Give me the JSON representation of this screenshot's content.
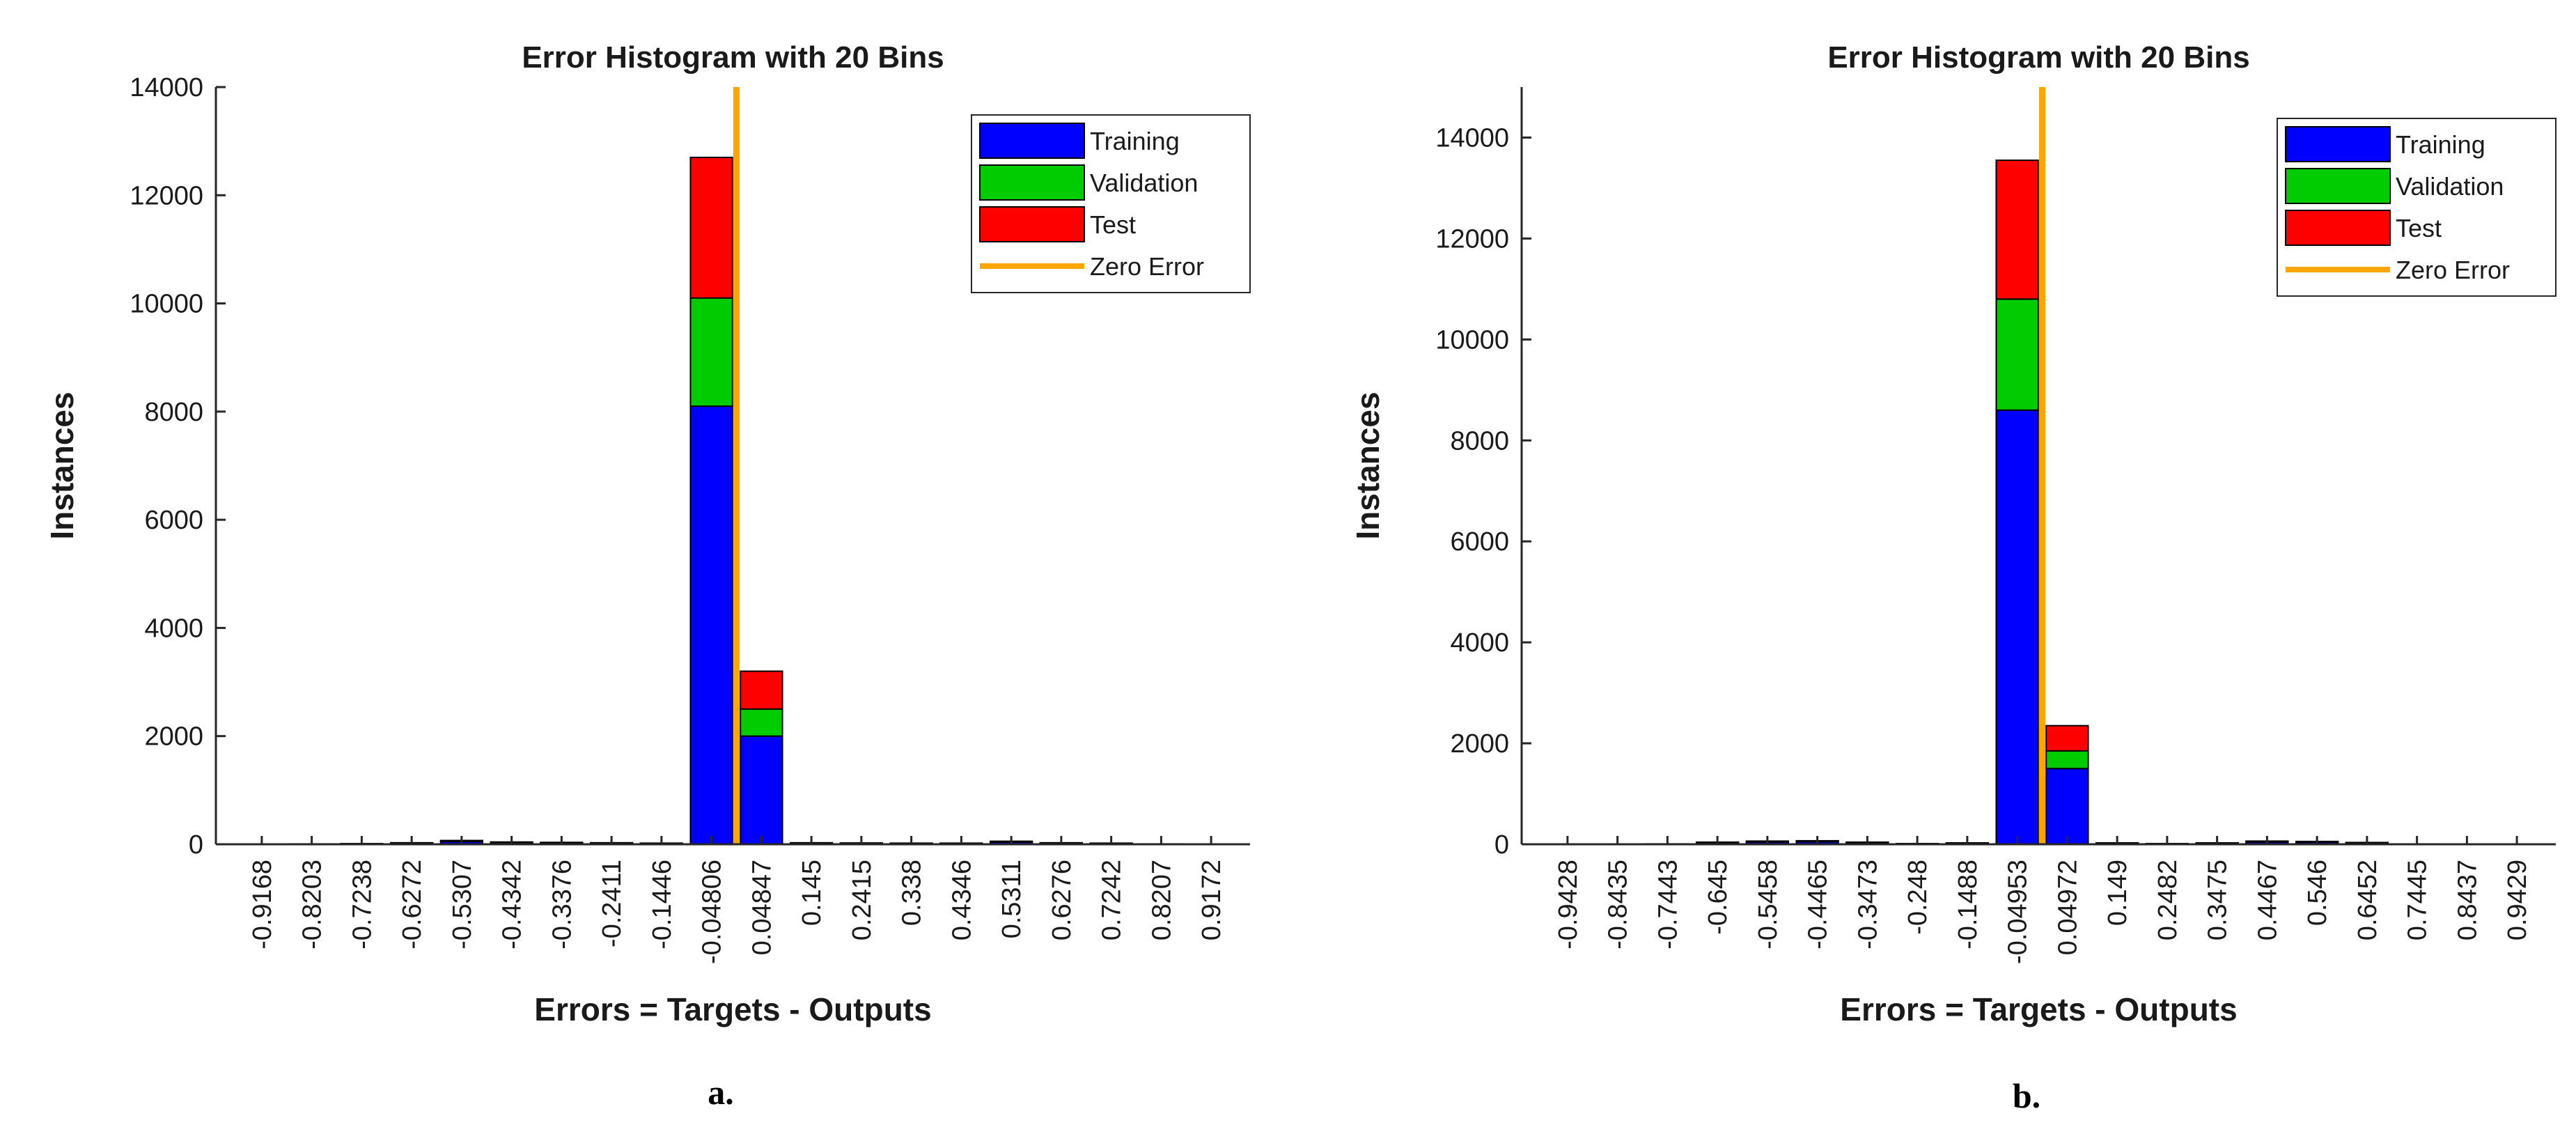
{
  "chart_data": [
    {
      "type": "bar",
      "stacked": true,
      "title": "Error Histogram with 20 Bins",
      "xlabel": "Errors = Targets - Outputs",
      "ylabel": "Instances",
      "caption": "a.",
      "ylim": [
        0,
        14000
      ],
      "yticks": [
        "0",
        "2000",
        "4000",
        "6000",
        "8000",
        "10000",
        "12000",
        "14000"
      ],
      "categories": [
        "-0.9168",
        "-0.8203",
        "-0.7238",
        "-0.6272",
        "-0.5307",
        "-0.4342",
        "-0.3376",
        "-0.2411",
        "-0.1446",
        "-0.04806",
        "0.04847",
        "0.145",
        "0.2415",
        "0.338",
        "0.4346",
        "0.5311",
        "0.6276",
        "0.7242",
        "0.8207",
        "0.9172"
      ],
      "series": [
        {
          "name": "Training",
          "color": "#0000ff",
          "values": [
            3,
            5,
            8,
            20,
            50,
            30,
            25,
            20,
            15,
            8100,
            2000,
            20,
            18,
            15,
            15,
            40,
            20,
            15,
            5,
            3
          ]
        },
        {
          "name": "Validation",
          "color": "#00cc00",
          "values": [
            1,
            1,
            2,
            4,
            10,
            6,
            5,
            4,
            3,
            2000,
            500,
            4,
            3,
            3,
            3,
            8,
            4,
            3,
            1,
            1
          ]
        },
        {
          "name": "Test",
          "color": "#ff0000",
          "values": [
            1,
            1,
            2,
            4,
            10,
            6,
            5,
            4,
            3,
            2600,
            700,
            4,
            3,
            3,
            3,
            8,
            4,
            3,
            1,
            1
          ]
        }
      ],
      "zero_error": {
        "name": "Zero Error",
        "color": "#ffa500",
        "x": 0
      },
      "legend": "top-right",
      "grid": false
    },
    {
      "type": "bar",
      "stacked": true,
      "title": "Error Histogram with 20 Bins",
      "xlabel": "Errors = Targets - Outputs",
      "ylabel": "Instances",
      "caption": "b.",
      "ylim": [
        0,
        15000
      ],
      "yticks": [
        "0",
        "2000",
        "4000",
        "6000",
        "8000",
        "10000",
        "12000",
        "14000"
      ],
      "categories": [
        "-0.9428",
        "-0.8435",
        "-0.7443",
        "-0.645",
        "-0.5458",
        "-0.4465",
        "-0.3473",
        "-0.248",
        "-0.1488",
        "-0.04953",
        "0.04972",
        "0.149",
        "0.2482",
        "0.3475",
        "0.4467",
        "0.546",
        "0.6452",
        "0.7445",
        "0.8437",
        "0.9429"
      ],
      "series": [
        {
          "name": "Training",
          "color": "#0000ff",
          "values": [
            2,
            4,
            6,
            30,
            45,
            50,
            30,
            10,
            20,
            8600,
            1500,
            20,
            10,
            20,
            45,
            40,
            25,
            5,
            3,
            2
          ]
        },
        {
          "name": "Validation",
          "color": "#00cc00",
          "values": [
            1,
            1,
            1,
            6,
            9,
            10,
            6,
            2,
            4,
            2200,
            350,
            4,
            2,
            4,
            9,
            8,
            5,
            1,
            1,
            1
          ]
        },
        {
          "name": "Test",
          "color": "#ff0000",
          "values": [
            1,
            1,
            1,
            6,
            9,
            10,
            6,
            2,
            4,
            2750,
            500,
            4,
            2,
            4,
            9,
            8,
            5,
            1,
            1,
            1
          ]
        }
      ],
      "zero_error": {
        "name": "Zero Error",
        "color": "#ffa500",
        "x": 0
      },
      "legend": "top-right",
      "grid": false
    }
  ]
}
